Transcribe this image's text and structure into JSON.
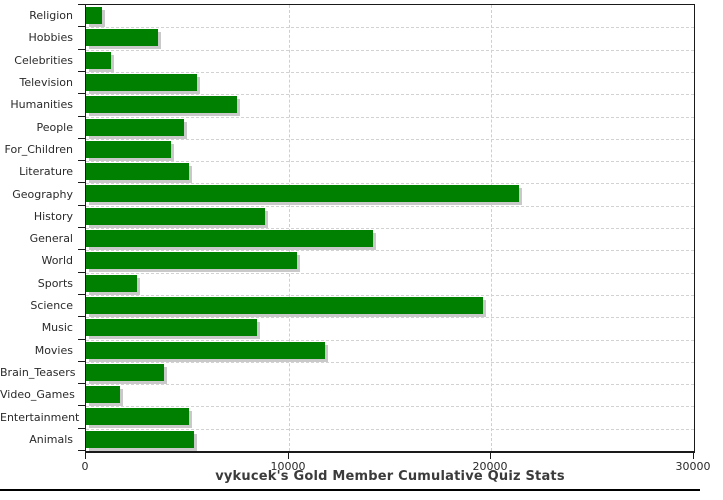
{
  "chart_data": {
    "type": "bar",
    "orientation": "horizontal",
    "title": "vykucek's Gold Member Cumulative Quiz Stats",
    "categories": [
      "Religion",
      "Hobbies",
      "Celebrities",
      "Television",
      "Humanities",
      "People",
      "For_Children",
      "Literature",
      "Geography",
      "History",
      "General",
      "World",
      "Sports",
      "Science",
      "Music",
      "Movies",
      "Brain_Teasers",
      "Video_Games",
      "Entertainment",
      "Animals"
    ],
    "values": [
      800,
      3550,
      1250,
      5500,
      7450,
      4850,
      4200,
      5100,
      21350,
      8850,
      14150,
      10400,
      2500,
      19600,
      8450,
      11800,
      3850,
      1700,
      5100,
      5350
    ],
    "xlabel": "",
    "ylabel": "",
    "xlim": [
      0,
      30000
    ],
    "x_ticks": [
      0,
      10000,
      20000,
      30000
    ],
    "x_tick_labels": [
      "0",
      "10000",
      "20000",
      "30000"
    ],
    "grid": "dashed-on",
    "legend": "none",
    "bar_color": "#008000",
    "bar_shadow_color": "#c9c9c9",
    "axis_color": "#1a1a1a",
    "grid_color": "#d2d2d2",
    "title_color": "#3b3b3b"
  }
}
